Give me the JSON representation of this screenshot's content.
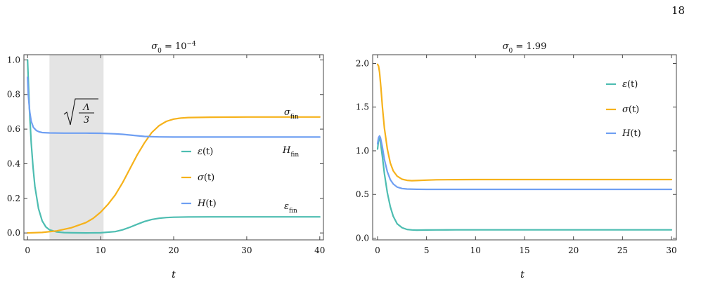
{
  "page": {
    "number": "18"
  },
  "colors": {
    "epsilon": "#4dbdb1",
    "sigma": "#f6b21b",
    "hubble": "#6f9ff2",
    "band": "#e4e4e4"
  },
  "chart_data": [
    {
      "type": "line",
      "title": "σ0 = 10⁻⁴",
      "title_main": "σ",
      "title_sub": "0",
      "title_rest": " = 10",
      "title_sup": "−4",
      "xlabel": "t",
      "ylabel": "",
      "xlim": [
        -0.5,
        40.5
      ],
      "ylim": [
        -0.04,
        1.03
      ],
      "xticks": [
        0,
        10,
        20,
        30,
        40
      ],
      "xtick_labels": [
        "0",
        "10",
        "20",
        "30",
        "40"
      ],
      "yticks": [
        0.0,
        0.2,
        0.4,
        0.6,
        0.8,
        1.0
      ],
      "ytick_labels": [
        "0.0",
        "0.2",
        "0.4",
        "0.6",
        "0.8",
        "1.0"
      ],
      "shaded_region": [
        3.0,
        10.4
      ],
      "legend_placement": "center-right",
      "legend": [
        {
          "main": "ε",
          "rest": "(t)"
        },
        {
          "main": "σ",
          "rest": "(t)"
        },
        {
          "main": "H",
          "rest": "(t)"
        }
      ],
      "annotations": [
        {
          "id": "sqrt-label",
          "text": "√(Λ/3)",
          "numerator": "Λ",
          "denominator": "3"
        },
        {
          "id": "sigma-fin",
          "main": "σ",
          "sub": "fin",
          "x": 38,
          "y": 0.685
        },
        {
          "id": "h-fin",
          "main": "H",
          "sub": "fin",
          "x": 38,
          "y": 0.49
        },
        {
          "id": "eps-fin",
          "main": "ε",
          "sub": "fin",
          "x": 38,
          "y": 0.13
        }
      ],
      "series": [
        {
          "key": "epsilon",
          "name": "ε(t)",
          "x": [
            0,
            0.25,
            0.5,
            0.75,
            1,
            1.5,
            2,
            2.5,
            3,
            4,
            5,
            6,
            8,
            10,
            12,
            13,
            14,
            15,
            16,
            17,
            18,
            19,
            20,
            22,
            25,
            30,
            35,
            40
          ],
          "y": [
            1.0,
            0.72,
            0.52,
            0.38,
            0.27,
            0.14,
            0.07,
            0.035,
            0.018,
            0.006,
            0.002,
            0.0008,
            0.0002,
            0.001,
            0.008,
            0.018,
            0.033,
            0.05,
            0.066,
            0.078,
            0.085,
            0.089,
            0.091,
            0.0925,
            0.093,
            0.093,
            0.093,
            0.093
          ]
        },
        {
          "key": "sigma",
          "name": "σ(t)",
          "x": [
            0,
            2,
            4,
            6,
            8,
            9,
            10,
            11,
            12,
            13,
            14,
            15,
            16,
            17,
            18,
            19,
            20,
            21,
            22,
            25,
            30,
            35,
            40
          ],
          "y": [
            0.0,
            0.003,
            0.012,
            0.03,
            0.06,
            0.085,
            0.12,
            0.165,
            0.22,
            0.29,
            0.37,
            0.45,
            0.52,
            0.58,
            0.62,
            0.645,
            0.658,
            0.664,
            0.667,
            0.669,
            0.67,
            0.67,
            0.67
          ]
        },
        {
          "key": "hubble",
          "name": "H(t)",
          "x": [
            0,
            0.1,
            0.3,
            0.5,
            0.8,
            1.2,
            1.6,
            2,
            3,
            5,
            8,
            10,
            12,
            13,
            14,
            15,
            16,
            17,
            18,
            20,
            25,
            30,
            35,
            40
          ],
          "y": [
            0.9,
            0.8,
            0.7,
            0.645,
            0.61,
            0.592,
            0.584,
            0.58,
            0.578,
            0.577,
            0.577,
            0.576,
            0.573,
            0.57,
            0.566,
            0.562,
            0.558,
            0.556,
            0.555,
            0.554,
            0.554,
            0.554,
            0.554,
            0.554
          ]
        }
      ]
    },
    {
      "type": "line",
      "title": "σ0 = 1.99",
      "title_main": "σ",
      "title_sub": "0",
      "title_rest": " = 1.99",
      "title_sup": "",
      "xlabel": "t",
      "ylabel": "",
      "xlim": [
        -0.5,
        30.5
      ],
      "ylim": [
        -0.02,
        2.1
      ],
      "xticks": [
        0,
        5,
        10,
        15,
        20,
        25,
        30
      ],
      "xtick_labels": [
        "0",
        "5",
        "10",
        "15",
        "20",
        "25",
        "30"
      ],
      "yticks": [
        0.0,
        0.5,
        1.0,
        1.5,
        2.0
      ],
      "ytick_labels": [
        "0.0",
        "0.5",
        "1.0",
        "1.5",
        "2.0"
      ],
      "legend_placement": "top-right",
      "legend": [
        {
          "main": "ε",
          "rest": "(t)"
        },
        {
          "main": "σ",
          "rest": "(t)"
        },
        {
          "main": "H",
          "rest": "(t)"
        }
      ],
      "series": [
        {
          "key": "epsilon",
          "name": "ε(t)",
          "x": [
            0,
            0.1,
            0.2,
            0.3,
            0.5,
            0.7,
            1,
            1.3,
            1.6,
            2,
            2.5,
            3,
            3.5,
            4,
            5,
            6,
            8,
            10,
            15,
            20,
            25,
            30
          ],
          "y": [
            1.02,
            1.12,
            1.14,
            1.1,
            0.93,
            0.74,
            0.52,
            0.36,
            0.25,
            0.165,
            0.12,
            0.1,
            0.094,
            0.092,
            0.093,
            0.094,
            0.095,
            0.095,
            0.095,
            0.095,
            0.095,
            0.095
          ]
        },
        {
          "key": "sigma",
          "name": "σ(t)",
          "x": [
            0,
            0.1,
            0.2,
            0.35,
            0.5,
            0.7,
            1,
            1.3,
            1.6,
            2,
            2.5,
            3,
            3.5,
            4,
            5,
            6,
            8,
            10,
            15,
            20,
            25,
            30
          ],
          "y": [
            1.99,
            1.97,
            1.9,
            1.72,
            1.5,
            1.26,
            1.02,
            0.86,
            0.77,
            0.71,
            0.675,
            0.662,
            0.658,
            0.659,
            0.664,
            0.668,
            0.67,
            0.671,
            0.671,
            0.671,
            0.671,
            0.671
          ]
        },
        {
          "key": "hubble",
          "name": "H(t)",
          "x": [
            0,
            0.1,
            0.2,
            0.3,
            0.5,
            0.7,
            1,
            1.3,
            1.6,
            2,
            2.5,
            3,
            4,
            5,
            8,
            10,
            15,
            20,
            25,
            30
          ],
          "y": [
            1.08,
            1.15,
            1.17,
            1.15,
            1.04,
            0.9,
            0.76,
            0.67,
            0.62,
            0.585,
            0.568,
            0.562,
            0.559,
            0.558,
            0.558,
            0.558,
            0.558,
            0.558,
            0.558,
            0.558
          ]
        }
      ]
    }
  ]
}
